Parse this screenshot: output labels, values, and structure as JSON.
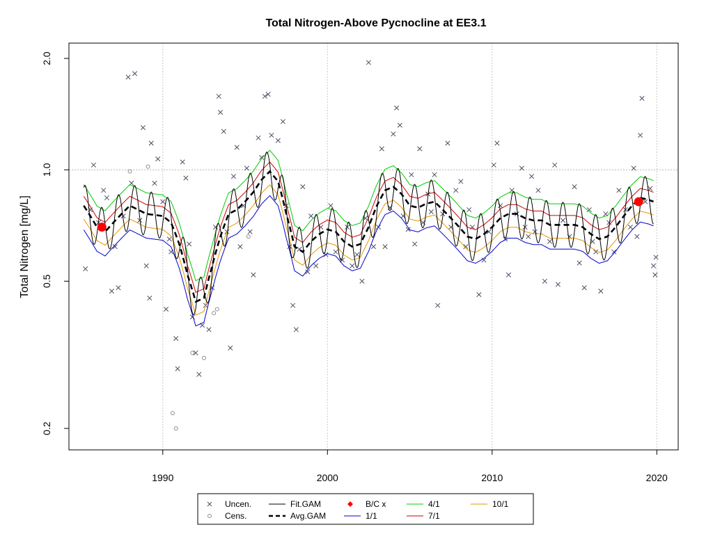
{
  "chart_data": {
    "type": "line",
    "title": "Total Nitrogen-Above Pycnocline at EE3.1",
    "xlabel": "",
    "ylabel": "Total Nitrogen [mg/L]",
    "x_scale": "linear",
    "y_scale": "log",
    "xlim": [
      1984.3,
      2021.3
    ],
    "ylim": [
      0.175,
      2.2
    ],
    "x_ticks": [
      1990,
      2000,
      2010,
      2020
    ],
    "y_ticks": [
      0.2,
      0.5,
      1.0,
      2.0
    ],
    "x_tick_labels": [
      "1990",
      "2000",
      "2010",
      "2020"
    ],
    "y_tick_labels": [
      "0.2",
      "0.5",
      "1.0",
      "2.0"
    ],
    "grid": true,
    "reference_line_y": 1.0,
    "legend_position": "bottom",
    "colors": {
      "uncensored": "#4d4d66",
      "censored": "#8c8c8c",
      "fit_gam": "#000000",
      "avg_gam": "#000000",
      "bc": "#ff0000",
      "jan1": "#0000cc",
      "apr1": "#00cc00",
      "jul1": "#cc0000",
      "oct1": "#e69500"
    },
    "legend": [
      {
        "label": "Uncen.",
        "symbol": "x",
        "color": "#4d4d66"
      },
      {
        "label": "Fit.GAM",
        "symbol": "line",
        "color": "#000000"
      },
      {
        "label": "B/C x",
        "symbol": "diamond",
        "color": "#ff0000"
      },
      {
        "label": "4/1",
        "symbol": "line",
        "color": "#00cc00"
      },
      {
        "label": "10/1",
        "symbol": "line",
        "color": "#e69500"
      },
      {
        "label": "Cens.",
        "symbol": "o",
        "color": "#8c8c8c"
      },
      {
        "label": "Avg.GAM",
        "symbol": "dash",
        "color": "#000000"
      },
      {
        "label": "1/1",
        "symbol": "line",
        "color": "#0000cc"
      },
      {
        "label": "7/1",
        "symbol": "line",
        "color": "#cc0000"
      }
    ],
    "bc_points": [
      {
        "x": 1986.3,
        "y": 0.7
      },
      {
        "x": 2018.9,
        "y": 0.82
      }
    ],
    "avg_gam": {
      "x": [
        1985.2,
        1986.0,
        1986.5,
        1987.0,
        1988.0,
        1989.0,
        1990.0,
        1990.5,
        1991.0,
        1991.5,
        1992.0,
        1992.5,
        1993.0,
        1993.5,
        1994.0,
        1994.5,
        1995.0,
        1995.5,
        1996.0,
        1996.5,
        1997.0,
        1997.5,
        1998.0,
        1998.5,
        1999.0,
        1999.5,
        2000.0,
        2000.5,
        2001.0,
        2001.5,
        2002.0,
        2002.5,
        2003.0,
        2003.5,
        2004.0,
        2004.5,
        2005.0,
        2005.5,
        2006.0,
        2006.5,
        2007.0,
        2007.5,
        2008.0,
        2008.5,
        2009.0,
        2009.5,
        2010.0,
        2010.5,
        2011.0,
        2011.5,
        2012.0,
        2012.5,
        2013.0,
        2013.5,
        2014.0,
        2014.5,
        2015.0,
        2015.5,
        2016.0,
        2016.5,
        2017.0,
        2017.5,
        2018.0,
        2018.5,
        2019.0,
        2019.5,
        2019.8
      ],
      "y": [
        0.8,
        0.7,
        0.68,
        0.72,
        0.8,
        0.76,
        0.75,
        0.72,
        0.63,
        0.52,
        0.44,
        0.45,
        0.55,
        0.66,
        0.76,
        0.78,
        0.82,
        0.87,
        0.94,
        0.99,
        0.93,
        0.76,
        0.62,
        0.6,
        0.64,
        0.67,
        0.69,
        0.68,
        0.64,
        0.62,
        0.63,
        0.7,
        0.8,
        0.88,
        0.9,
        0.86,
        0.8,
        0.79,
        0.81,
        0.82,
        0.78,
        0.74,
        0.7,
        0.66,
        0.65,
        0.67,
        0.7,
        0.74,
        0.76,
        0.76,
        0.74,
        0.73,
        0.73,
        0.71,
        0.71,
        0.71,
        0.71,
        0.7,
        0.67,
        0.65,
        0.66,
        0.7,
        0.75,
        0.8,
        0.84,
        0.83,
        0.82
      ]
    },
    "seasonal_offsets": {
      "jan1": 0.86,
      "apr1": 1.14,
      "jul1": 1.06,
      "oct1": 0.92
    },
    "fit_amplitude": 0.14,
    "uncensored_points": [
      {
        "x": 1985.3,
        "y": 0.54
      },
      {
        "x": 1985.6,
        "y": 0.78
      },
      {
        "x": 1985.8,
        "y": 1.03
      },
      {
        "x": 1986.1,
        "y": 0.72
      },
      {
        "x": 1986.4,
        "y": 0.88
      },
      {
        "x": 1986.6,
        "y": 0.84
      },
      {
        "x": 1986.9,
        "y": 0.47
      },
      {
        "x": 1987.1,
        "y": 0.62
      },
      {
        "x": 1987.3,
        "y": 0.48
      },
      {
        "x": 1987.6,
        "y": 0.75
      },
      {
        "x": 1987.9,
        "y": 1.78
      },
      {
        "x": 1988.1,
        "y": 0.92
      },
      {
        "x": 1988.3,
        "y": 1.82
      },
      {
        "x": 1988.6,
        "y": 0.73
      },
      {
        "x": 1988.8,
        "y": 1.3
      },
      {
        "x": 1989.0,
        "y": 0.55
      },
      {
        "x": 1989.2,
        "y": 0.45
      },
      {
        "x": 1989.3,
        "y": 1.18
      },
      {
        "x": 1989.5,
        "y": 0.92
      },
      {
        "x": 1989.7,
        "y": 1.07
      },
      {
        "x": 1990.0,
        "y": 0.82
      },
      {
        "x": 1990.2,
        "y": 0.42
      },
      {
        "x": 1990.4,
        "y": 0.65
      },
      {
        "x": 1990.5,
        "y": 0.6
      },
      {
        "x": 1990.8,
        "y": 0.35
      },
      {
        "x": 1990.9,
        "y": 0.29
      },
      {
        "x": 1991.2,
        "y": 1.05
      },
      {
        "x": 1991.4,
        "y": 0.95
      },
      {
        "x": 1991.6,
        "y": 0.63
      },
      {
        "x": 1991.8,
        "y": 0.4
      },
      {
        "x": 1992.0,
        "y": 0.32
      },
      {
        "x": 1992.2,
        "y": 0.28
      },
      {
        "x": 1992.4,
        "y": 0.38
      },
      {
        "x": 1992.6,
        "y": 0.43
      },
      {
        "x": 1992.8,
        "y": 0.37
      },
      {
        "x": 1993.0,
        "y": 0.48
      },
      {
        "x": 1993.2,
        "y": 0.7
      },
      {
        "x": 1993.4,
        "y": 1.58
      },
      {
        "x": 1993.5,
        "y": 1.43
      },
      {
        "x": 1993.7,
        "y": 1.27
      },
      {
        "x": 1993.9,
        "y": 0.68
      },
      {
        "x": 1994.1,
        "y": 0.33
      },
      {
        "x": 1994.3,
        "y": 0.96
      },
      {
        "x": 1994.5,
        "y": 1.15
      },
      {
        "x": 1994.7,
        "y": 0.62
      },
      {
        "x": 1994.9,
        "y": 0.8
      },
      {
        "x": 1995.1,
        "y": 1.01
      },
      {
        "x": 1995.3,
        "y": 0.68
      },
      {
        "x": 1995.5,
        "y": 0.52
      },
      {
        "x": 1995.8,
        "y": 1.22
      },
      {
        "x": 1996.0,
        "y": 1.08
      },
      {
        "x": 1996.2,
        "y": 1.58
      },
      {
        "x": 1996.4,
        "y": 1.6
      },
      {
        "x": 1996.6,
        "y": 1.24
      },
      {
        "x": 1997.0,
        "y": 1.2
      },
      {
        "x": 1997.3,
        "y": 1.35
      },
      {
        "x": 1997.5,
        "y": 0.8
      },
      {
        "x": 1997.7,
        "y": 0.62
      },
      {
        "x": 1997.9,
        "y": 0.43
      },
      {
        "x": 1998.1,
        "y": 0.37
      },
      {
        "x": 1998.3,
        "y": 0.61
      },
      {
        "x": 1998.5,
        "y": 0.9
      },
      {
        "x": 1998.8,
        "y": 0.53
      },
      {
        "x": 1999.0,
        "y": 0.75
      },
      {
        "x": 1999.3,
        "y": 0.55
      },
      {
        "x": 1999.6,
        "y": 0.7
      },
      {
        "x": 1999.9,
        "y": 0.59
      },
      {
        "x": 2000.2,
        "y": 0.8
      },
      {
        "x": 2000.5,
        "y": 0.6
      },
      {
        "x": 2000.9,
        "y": 0.57
      },
      {
        "x": 2001.2,
        "y": 0.7
      },
      {
        "x": 2001.5,
        "y": 0.55
      },
      {
        "x": 2001.8,
        "y": 0.59
      },
      {
        "x": 2002.1,
        "y": 0.5
      },
      {
        "x": 2002.3,
        "y": 0.74
      },
      {
        "x": 2002.5,
        "y": 1.95
      },
      {
        "x": 2002.8,
        "y": 0.62
      },
      {
        "x": 2003.1,
        "y": 0.7
      },
      {
        "x": 2003.3,
        "y": 1.14
      },
      {
        "x": 2003.5,
        "y": 0.62
      },
      {
        "x": 2003.8,
        "y": 0.79
      },
      {
        "x": 2004.0,
        "y": 1.25
      },
      {
        "x": 2004.2,
        "y": 1.47
      },
      {
        "x": 2004.4,
        "y": 1.32
      },
      {
        "x": 2004.6,
        "y": 0.75
      },
      {
        "x": 2004.9,
        "y": 0.69
      },
      {
        "x": 2005.1,
        "y": 0.97
      },
      {
        "x": 2005.3,
        "y": 0.63
      },
      {
        "x": 2005.6,
        "y": 1.14
      },
      {
        "x": 2005.8,
        "y": 0.72
      },
      {
        "x": 2006.1,
        "y": 0.86
      },
      {
        "x": 2006.3,
        "y": 0.77
      },
      {
        "x": 2006.5,
        "y": 0.97
      },
      {
        "x": 2006.7,
        "y": 0.43
      },
      {
        "x": 2007.0,
        "y": 0.76
      },
      {
        "x": 2007.3,
        "y": 1.18
      },
      {
        "x": 2007.5,
        "y": 0.7
      },
      {
        "x": 2007.8,
        "y": 0.88
      },
      {
        "x": 2008.1,
        "y": 0.93
      },
      {
        "x": 2008.4,
        "y": 0.62
      },
      {
        "x": 2008.6,
        "y": 0.78
      },
      {
        "x": 2008.8,
        "y": 0.7
      },
      {
        "x": 2009.2,
        "y": 0.46
      },
      {
        "x": 2009.5,
        "y": 0.57
      },
      {
        "x": 2009.8,
        "y": 0.68
      },
      {
        "x": 2010.1,
        "y": 1.03
      },
      {
        "x": 2010.3,
        "y": 1.18
      },
      {
        "x": 2010.5,
        "y": 0.8
      },
      {
        "x": 2010.8,
        "y": 0.65
      },
      {
        "x": 2011.0,
        "y": 0.52
      },
      {
        "x": 2011.2,
        "y": 0.88
      },
      {
        "x": 2011.5,
        "y": 0.76
      },
      {
        "x": 2011.8,
        "y": 1.01
      },
      {
        "x": 2012.0,
        "y": 0.7
      },
      {
        "x": 2012.2,
        "y": 0.66
      },
      {
        "x": 2012.4,
        "y": 0.96
      },
      {
        "x": 2012.6,
        "y": 0.68
      },
      {
        "x": 2012.8,
        "y": 0.88
      },
      {
        "x": 2013.2,
        "y": 0.5
      },
      {
        "x": 2013.5,
        "y": 0.64
      },
      {
        "x": 2013.8,
        "y": 1.03
      },
      {
        "x": 2014.0,
        "y": 0.49
      },
      {
        "x": 2014.3,
        "y": 0.73
      },
      {
        "x": 2014.7,
        "y": 0.66
      },
      {
        "x": 2015.0,
        "y": 0.9
      },
      {
        "x": 2015.3,
        "y": 0.56
      },
      {
        "x": 2015.6,
        "y": 0.48
      },
      {
        "x": 2015.9,
        "y": 0.78
      },
      {
        "x": 2016.1,
        "y": 0.64
      },
      {
        "x": 2016.3,
        "y": 0.6
      },
      {
        "x": 2016.6,
        "y": 0.47
      },
      {
        "x": 2016.9,
        "y": 0.76
      },
      {
        "x": 2017.1,
        "y": 0.72
      },
      {
        "x": 2017.4,
        "y": 0.6
      },
      {
        "x": 2017.7,
        "y": 0.88
      },
      {
        "x": 2018.1,
        "y": 0.78
      },
      {
        "x": 2018.4,
        "y": 0.7
      },
      {
        "x": 2018.6,
        "y": 1.01
      },
      {
        "x": 2018.8,
        "y": 0.66
      },
      {
        "x": 2019.0,
        "y": 1.24
      },
      {
        "x": 2019.1,
        "y": 1.56
      },
      {
        "x": 2019.3,
        "y": 0.82
      },
      {
        "x": 2019.6,
        "y": 0.89
      },
      {
        "x": 2019.8,
        "y": 0.55
      },
      {
        "x": 2019.9,
        "y": 0.52
      },
      {
        "x": 2019.95,
        "y": 0.58
      }
    ],
    "censored_points": [
      {
        "x": 1990.6,
        "y": 0.22
      },
      {
        "x": 1990.8,
        "y": 0.2
      },
      {
        "x": 1991.8,
        "y": 0.32
      },
      {
        "x": 1992.5,
        "y": 0.31
      },
      {
        "x": 1993.1,
        "y": 0.41
      },
      {
        "x": 1993.3,
        "y": 0.42
      },
      {
        "x": 1988.0,
        "y": 0.99
      },
      {
        "x": 1989.1,
        "y": 1.02
      },
      {
        "x": 1995.2,
        "y": 0.66
      }
    ]
  }
}
